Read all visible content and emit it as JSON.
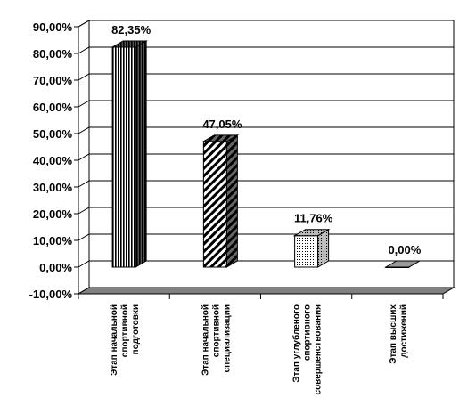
{
  "chart_data": {
    "type": "bar",
    "title": "",
    "xlabel": "",
    "ylabel": "",
    "categories": [
      [
        "Этап начальной",
        "спортивной",
        "подготовки"
      ],
      [
        "Этап начальной",
        "спортивной",
        "специализации"
      ],
      [
        "Этап углубленого",
        "спортивного",
        "совершенствования"
      ],
      [
        "Этап высших",
        "достижений"
      ]
    ],
    "values": [
      82.35,
      47.05,
      11.76,
      0.0
    ],
    "data_labels": [
      "82,35%",
      "47,05%",
      "11,76%",
      "0,00%"
    ],
    "ylim": [
      -10,
      90
    ],
    "ytick_step": 10,
    "ytick_labels": [
      "-10,00%",
      "0,00%",
      "10,00%",
      "20,00%",
      "30,00%",
      "40,00%",
      "50,00%",
      "60,00%",
      "70,00%",
      "80,00%",
      "90,00%"
    ],
    "grid": true,
    "legend": "none",
    "three_d": true,
    "fill_patterns": [
      "vertical-lines",
      "diagonal-stripes",
      "dots",
      "plain"
    ]
  }
}
